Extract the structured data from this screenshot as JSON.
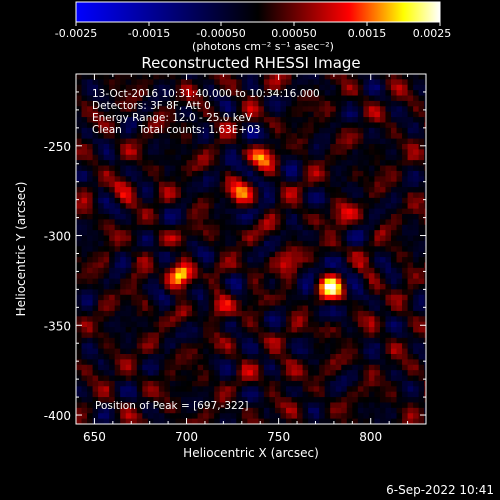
{
  "colorbar": {
    "ticks": [
      "-0.0025",
      "-0.0015",
      "-0.00050",
      "0.00050",
      "0.0015",
      "0.0025"
    ],
    "units_label": "(photons cm⁻² s⁻¹ asec⁻²)",
    "colors": [
      "#0000ff",
      "#000000",
      "#ff0000",
      "#ffff00",
      "#ffffff"
    ]
  },
  "header": {
    "title": "Reconstructed RHESSI Image"
  },
  "annotations": {
    "line1": "13-Oct-2016 10:31:40.000 to 10:34:16.000",
    "line2": "Detectors: 3F 8F, Att 0",
    "line3": "Energy Range: 12.0 - 25.0 keV",
    "line4": "Clean     Total counts: 1.63E+03",
    "peak": "Position of Peak = [697,-322]"
  },
  "chart_data": {
    "type": "heatmap",
    "title": "Reconstructed RHESSI Image",
    "xlabel": "Heliocentric X (arcsec)",
    "ylabel": "Heliocentric Y (arcsec)",
    "xlim": [
      640,
      830
    ],
    "ylim": [
      -405,
      -210
    ],
    "xticks": [
      650,
      700,
      750,
      800
    ],
    "yticks": [
      -250,
      -300,
      -350,
      -400
    ],
    "xtick_labels": [
      "650",
      "700",
      "750",
      "800"
    ],
    "ytick_labels": [
      "-250",
      "-300",
      "-350",
      "-400"
    ],
    "color_range": [
      -0.0025,
      0.0025
    ],
    "peak": [
      697,
      -322
    ],
    "sources": [
      {
        "x": 697,
        "y": -322,
        "amp": 1.0
      },
      {
        "x": 778,
        "y": -329,
        "amp": 0.75
      },
      {
        "x": 742,
        "y": -257,
        "amp": 0.55
      },
      {
        "x": 730,
        "y": -275,
        "amp": 0.55
      },
      {
        "x": 719,
        "y": -340,
        "amp": 0.45
      },
      {
        "x": 784,
        "y": -289,
        "amp": 0.45
      },
      {
        "x": 752,
        "y": -315,
        "amp": 0.4
      },
      {
        "x": 667,
        "y": -275,
        "amp": 0.35
      },
      {
        "x": 755,
        "y": -376,
        "amp": 0.3
      }
    ]
  },
  "footer": {
    "timestamp": "6-Sep-2022 10:41"
  }
}
